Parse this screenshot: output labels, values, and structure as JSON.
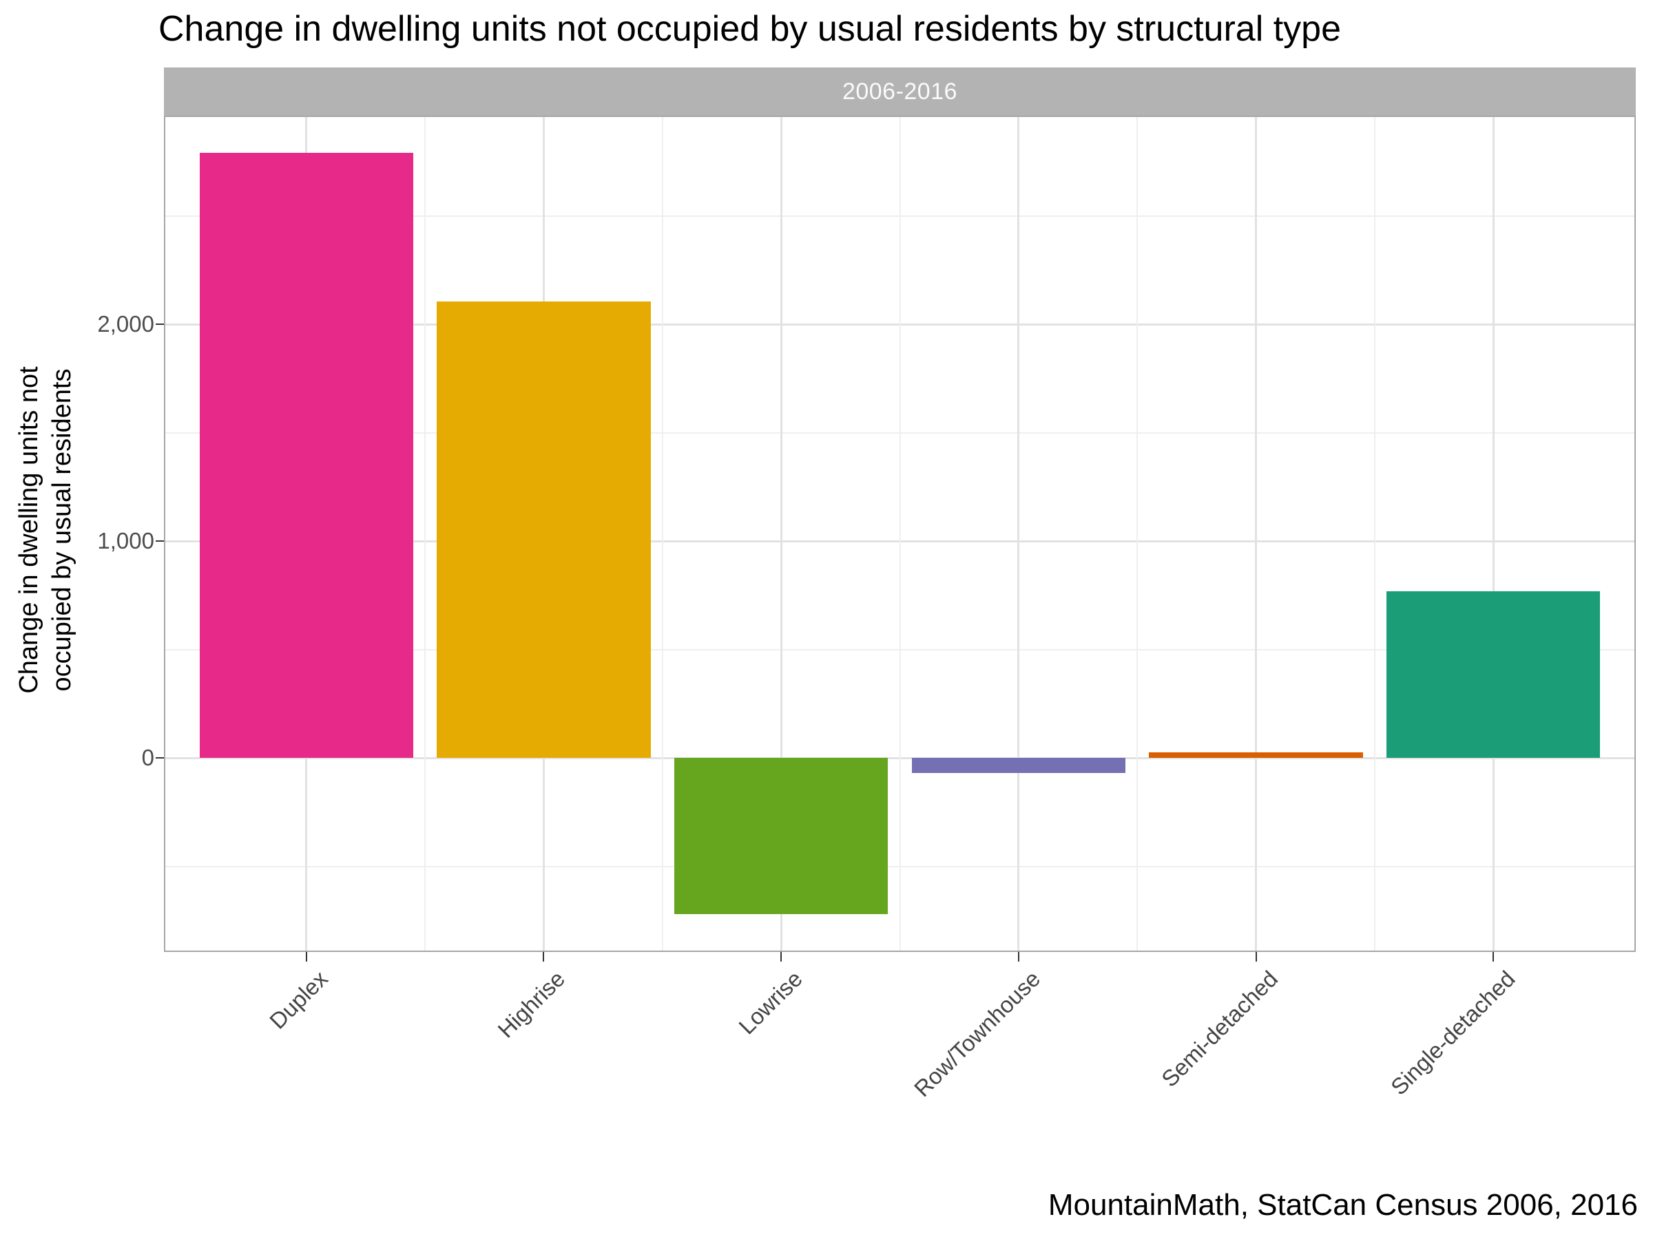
{
  "title": "Change in dwelling units not occupied by usual residents by structural type",
  "caption": "MountainMath, StatCan Census 2006, 2016",
  "facet": {
    "label": "2006-2016",
    "fill": "#b3b3b3",
    "text_color": "#fafafa"
  },
  "y_axis": {
    "title_lines": [
      "Change in dwelling units not",
      "occupied by usual residents"
    ],
    "tick_labels": [
      "0",
      "1,000",
      "2,000"
    ]
  },
  "chart_data": {
    "type": "bar",
    "title": "Change in dwelling units not occupied by usual residents by structural type",
    "facet_label": "2006-2016",
    "categories": [
      "Duplex",
      "Highrise",
      "Lowrise",
      "Row/Townhouse",
      "Semi-detached",
      "Single-detached"
    ],
    "values": [
      2790,
      2105,
      -720,
      -70,
      25,
      770
    ],
    "colors": [
      "#E7298A",
      "#E6AB02",
      "#66A61E",
      "#7570B3",
      "#D95F02",
      "#1B9E77"
    ],
    "xlabel": "",
    "ylabel": "Change in dwelling units not occupied by usual residents",
    "ylim": [
      -895,
      2962
    ],
    "yticks_major": [
      0,
      1000,
      2000
    ],
    "yticks_minor": [
      -500,
      500,
      1500,
      2500
    ],
    "grid": true,
    "legend": false,
    "bar_width_fraction": 0.9
  }
}
